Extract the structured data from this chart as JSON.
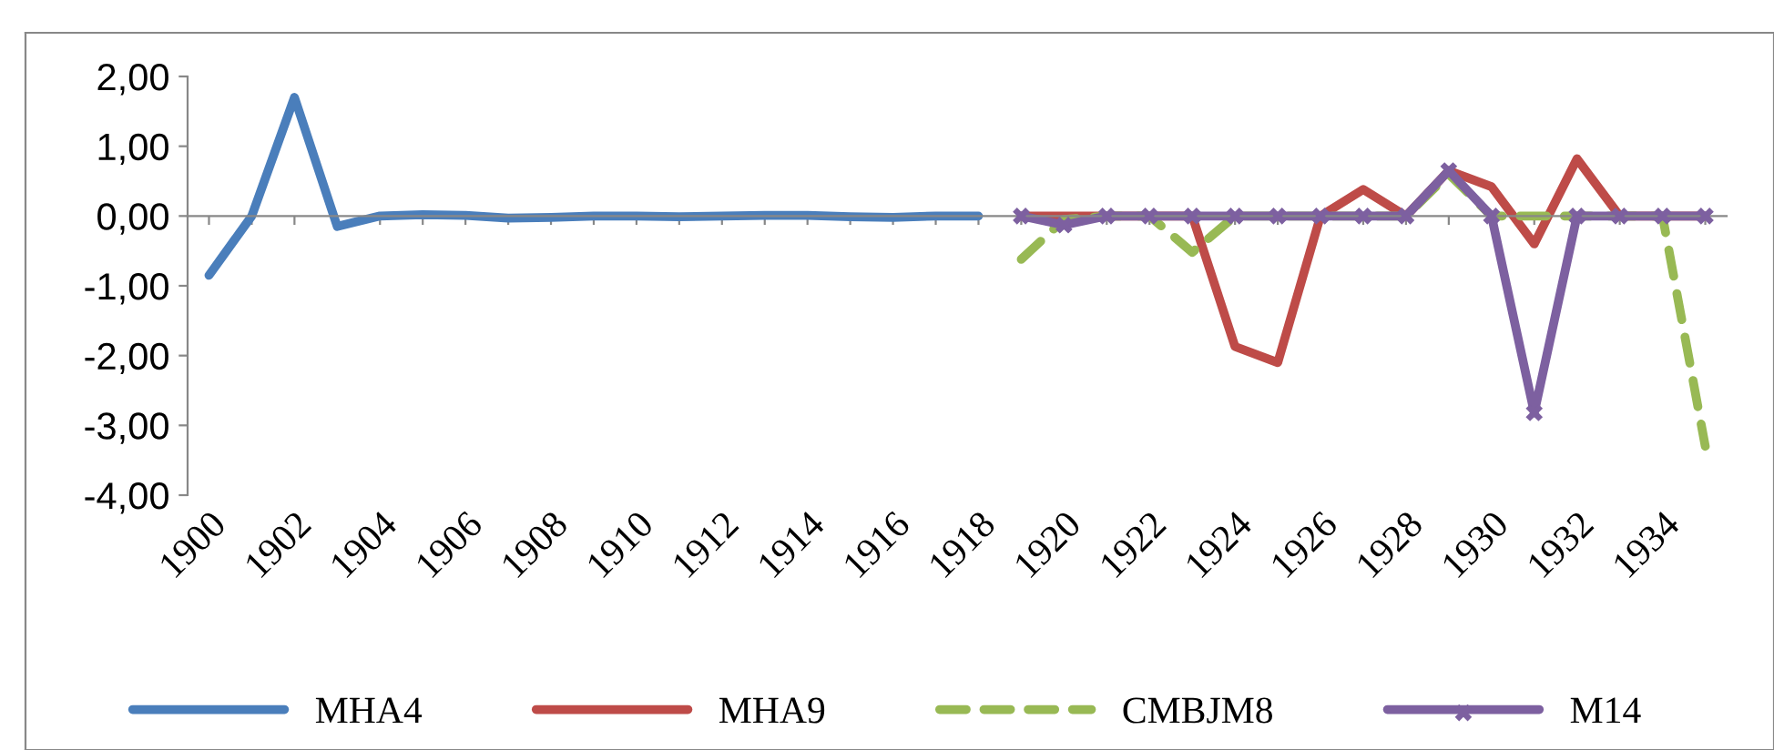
{
  "chart_data": {
    "type": "line",
    "categories": [
      "1900",
      null,
      "1902",
      null,
      "1904",
      null,
      "1906",
      null,
      "1908",
      null,
      "1910",
      null,
      "1912",
      null,
      "1914",
      null,
      "1916",
      null,
      "1918",
      null,
      "1920",
      null,
      "1922",
      null,
      "1924",
      null,
      "1926",
      null,
      "1928",
      null,
      "1930",
      null,
      "1932",
      null,
      "1934",
      null
    ],
    "series": [
      {
        "name": "MHA4",
        "color": "#4a7ebb",
        "values": [
          -0.85,
          0,
          1.7,
          -0.15,
          0,
          0.02,
          0.01,
          -0.03,
          -0.02,
          0,
          0,
          -0.01,
          0,
          0.01,
          0.01,
          -0.01,
          -0.02,
          0,
          0,
          null,
          null,
          null,
          null,
          null,
          null,
          null,
          null,
          null,
          null,
          null,
          null,
          null,
          null,
          null,
          null,
          null
        ]
      },
      {
        "name": "MHA9",
        "color": "#be4b48",
        "values": [
          null,
          null,
          null,
          null,
          null,
          null,
          null,
          null,
          null,
          null,
          null,
          null,
          null,
          null,
          null,
          null,
          null,
          null,
          null,
          0,
          0,
          0,
          0,
          0,
          -1.87,
          -2.1,
          0,
          0.38,
          0,
          0.65,
          0.42,
          -0.4,
          0.82,
          0,
          0,
          0
        ]
      },
      {
        "name": "CMBJM8",
        "color": "#98b954",
        "line_style": "dashed",
        "values": [
          null,
          null,
          null,
          null,
          null,
          null,
          null,
          null,
          null,
          null,
          null,
          null,
          null,
          null,
          null,
          null,
          null,
          null,
          null,
          -0.62,
          -0.05,
          0,
          0,
          -0.52,
          0,
          0,
          0,
          0,
          0,
          0.6,
          0,
          0,
          0,
          0,
          0,
          -3.3
        ]
      },
      {
        "name": "M14",
        "color": "#7d60a0",
        "marker": "cross",
        "values": [
          null,
          null,
          null,
          null,
          null,
          null,
          null,
          null,
          null,
          null,
          null,
          null,
          null,
          null,
          null,
          null,
          null,
          null,
          null,
          0,
          -0.13,
          0,
          0,
          0,
          0,
          0,
          0,
          0,
          0,
          0.65,
          0,
          -2.82,
          0,
          0,
          0,
          0
        ]
      }
    ],
    "ylim": [
      -4,
      2
    ],
    "yticks": [
      {
        "value": -4,
        "label": "-4,00"
      },
      {
        "value": -3,
        "label": "-3,00"
      },
      {
        "value": -2,
        "label": "-2,00"
      },
      {
        "value": -1,
        "label": "-1,00"
      },
      {
        "value": 0,
        "label": "0,00"
      },
      {
        "value": 1,
        "label": "1,00"
      },
      {
        "value": 2,
        "label": "2,00"
      }
    ],
    "legend": "bottom"
  }
}
